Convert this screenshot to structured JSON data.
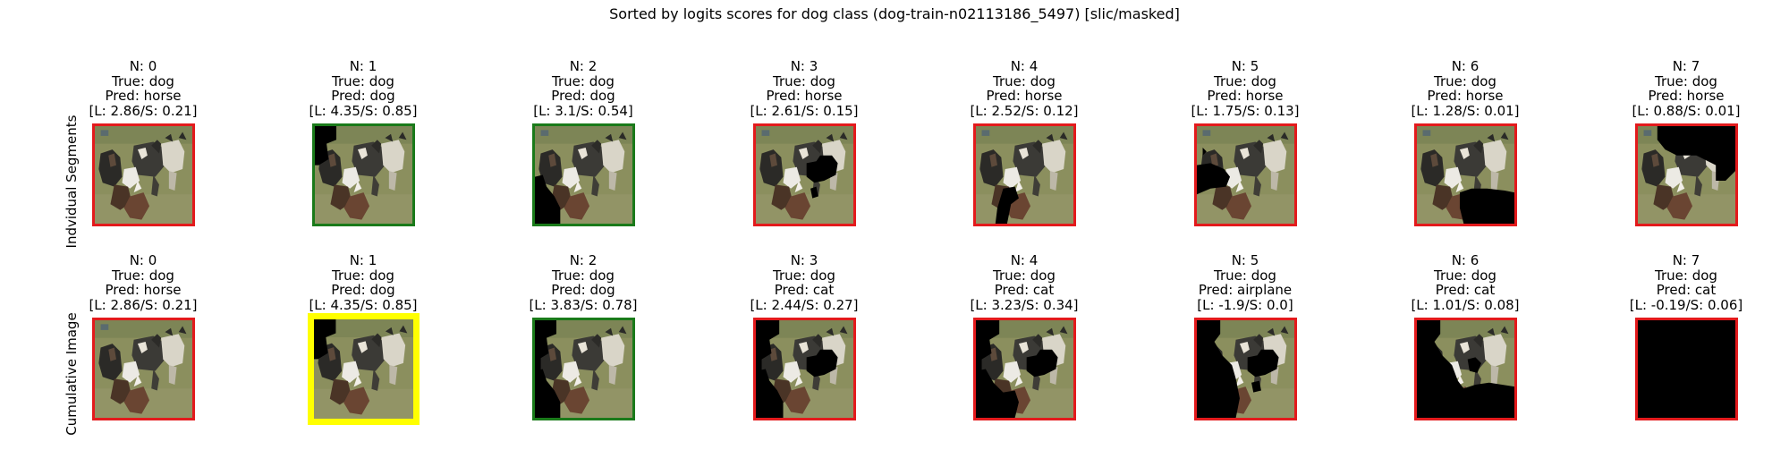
{
  "title": "Sorted by logits scores for dog class (dog-train-n02113186_5497) [slic/masked]",
  "row_labels": [
    "Indvidual Segments",
    "Cumulative Image"
  ],
  "border_colors": {
    "red": "#e31a1c",
    "green": "#1a7a1a",
    "yellow": "#ffff00"
  },
  "rows": [
    {
      "cells": [
        {
          "n": "N: 0",
          "true": "True: dog",
          "pred": "Pred: horse",
          "score": "[L: 2.86/S: 0.21]",
          "border": "red",
          "mask": "none"
        },
        {
          "n": "N: 1",
          "true": "True: dog",
          "pred": "Pred: dog",
          "score": "[L: 4.35/S: 0.85]",
          "border": "green",
          "mask": "left-upper"
        },
        {
          "n": "N: 2",
          "true": "True: dog",
          "pred": "Pred: dog",
          "score": "[L: 3.1/S: 0.54]",
          "border": "green",
          "mask": "left-lower"
        },
        {
          "n": "N: 3",
          "true": "True: dog",
          "pred": "Pred: horse",
          "score": "[L: 2.61/S: 0.15]",
          "border": "red",
          "mask": "center-right"
        },
        {
          "n": "N: 4",
          "true": "True: dog",
          "pred": "Pred: horse",
          "score": "[L: 2.52/S: 0.12]",
          "border": "red",
          "mask": "bottom-center"
        },
        {
          "n": "N: 5",
          "true": "True: dog",
          "pred": "Pred: horse",
          "score": "[L: 1.75/S: 0.13]",
          "border": "red",
          "mask": "left-middle"
        },
        {
          "n": "N: 6",
          "true": "True: dog",
          "pred": "Pred: horse",
          "score": "[L: 1.28/S: 0.01]",
          "border": "red",
          "mask": "bottom-right"
        },
        {
          "n": "N: 7",
          "true": "True: dog",
          "pred": "Pred: horse",
          "score": "[L: 0.88/S: 0.01]",
          "border": "red",
          "mask": "top-right"
        }
      ]
    },
    {
      "cells": [
        {
          "n": "N: 0",
          "true": "True: dog",
          "pred": "Pred: horse",
          "score": "[L: 2.86/S: 0.21]",
          "border": "red",
          "mask": "none"
        },
        {
          "n": "N: 1",
          "true": "True: dog",
          "pred": "Pred: dog",
          "score": "[L: 4.35/S: 0.85]",
          "border": "yellow",
          "mask": "left-upper"
        },
        {
          "n": "N: 2",
          "true": "True: dog",
          "pred": "Pred: dog",
          "score": "[L: 3.83/S: 0.78]",
          "border": "green",
          "mask": "cum-2"
        },
        {
          "n": "N: 3",
          "true": "True: dog",
          "pred": "Pred: cat",
          "score": "[L: 2.44/S: 0.27]",
          "border": "red",
          "mask": "cum-3"
        },
        {
          "n": "N: 4",
          "true": "True: dog",
          "pred": "Pred: cat",
          "score": "[L: 3.23/S: 0.34]",
          "border": "red",
          "mask": "cum-4"
        },
        {
          "n": "N: 5",
          "true": "True: dog",
          "pred": "Pred: airplane",
          "score": "[L: -1.9/S: 0.0]",
          "border": "red",
          "mask": "cum-5"
        },
        {
          "n": "N: 6",
          "true": "True: dog",
          "pred": "Pred: cat",
          "score": "[L: 1.01/S: 0.08]",
          "border": "red",
          "mask": "cum-6"
        },
        {
          "n": "N: 7",
          "true": "True: dog",
          "pred": "Pred: cat",
          "score": "[L: -0.19/S: 0.06]",
          "border": "red",
          "mask": "all"
        }
      ]
    }
  ]
}
